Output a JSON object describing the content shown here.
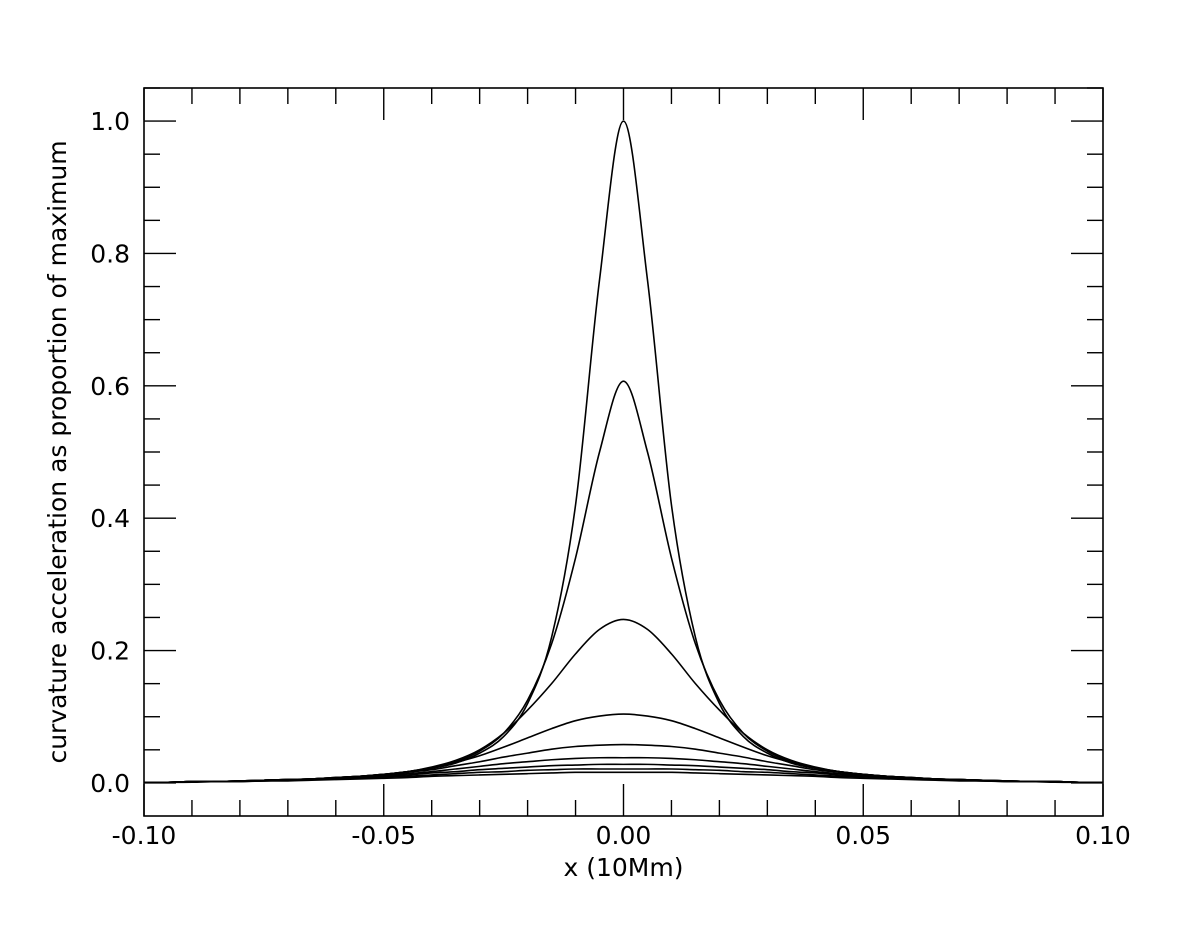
{
  "chart_data": {
    "type": "line",
    "title": "",
    "xlabel": "x (10Mm)",
    "ylabel": "curvature acceleration as proportion of maximum",
    "xlim": [
      -0.1,
      0.1
    ],
    "ylim": [
      -0.05,
      1.05
    ],
    "x_ticks": [
      "-0.10",
      "-0.05",
      "0.00",
      "0.05",
      "0.10"
    ],
    "y_ticks": [
      "0.0",
      "0.2",
      "0.4",
      "0.6",
      "0.8",
      "1.0"
    ],
    "grid": false,
    "legend": "none",
    "line_color": "#000000",
    "x": [
      -0.1,
      -0.095,
      -0.09,
      -0.085,
      -0.08,
      -0.075,
      -0.07,
      -0.065,
      -0.06,
      -0.055,
      -0.05,
      -0.045,
      -0.04,
      -0.035,
      -0.03,
      -0.025,
      -0.02,
      -0.015,
      -0.01,
      -0.005,
      0.0,
      0.005,
      0.01,
      0.015,
      0.02,
      0.025,
      0.03,
      0.035,
      0.04,
      0.045,
      0.05,
      0.055,
      0.06,
      0.065,
      0.07,
      0.075,
      0.08,
      0.085,
      0.09,
      0.095,
      0.1
    ],
    "series": [
      {
        "values": [
          0.001,
          0.001,
          0.002,
          0.002,
          0.003,
          0.004,
          0.005,
          0.006,
          0.008,
          0.01,
          0.013,
          0.017,
          0.022,
          0.03,
          0.045,
          0.07,
          0.12,
          0.22,
          0.42,
          0.76,
          1.0,
          0.76,
          0.42,
          0.22,
          0.12,
          0.07,
          0.045,
          0.03,
          0.022,
          0.017,
          0.013,
          0.01,
          0.008,
          0.006,
          0.005,
          0.004,
          0.003,
          0.002,
          0.002,
          0.001,
          0.001
        ]
      },
      {
        "values": [
          0.001,
          0.001,
          0.002,
          0.002,
          0.003,
          0.004,
          0.005,
          0.006,
          0.008,
          0.01,
          0.013,
          0.017,
          0.023,
          0.032,
          0.048,
          0.075,
          0.125,
          0.21,
          0.34,
          0.5,
          0.607,
          0.5,
          0.34,
          0.21,
          0.125,
          0.075,
          0.048,
          0.032,
          0.023,
          0.017,
          0.013,
          0.01,
          0.008,
          0.006,
          0.005,
          0.004,
          0.003,
          0.002,
          0.002,
          0.001,
          0.001
        ]
      },
      {
        "values": [
          0.001,
          0.001,
          0.002,
          0.002,
          0.003,
          0.004,
          0.005,
          0.006,
          0.008,
          0.01,
          0.013,
          0.017,
          0.024,
          0.034,
          0.05,
          0.075,
          0.11,
          0.15,
          0.195,
          0.232,
          0.247,
          0.232,
          0.195,
          0.15,
          0.11,
          0.075,
          0.05,
          0.034,
          0.024,
          0.017,
          0.013,
          0.01,
          0.008,
          0.006,
          0.005,
          0.004,
          0.003,
          0.002,
          0.002,
          0.001,
          0.001
        ]
      },
      {
        "values": [
          0.001,
          0.001,
          0.002,
          0.002,
          0.003,
          0.004,
          0.005,
          0.006,
          0.008,
          0.01,
          0.013,
          0.017,
          0.023,
          0.031,
          0.041,
          0.054,
          0.068,
          0.082,
          0.094,
          0.101,
          0.104,
          0.101,
          0.094,
          0.082,
          0.068,
          0.054,
          0.041,
          0.031,
          0.023,
          0.017,
          0.013,
          0.01,
          0.008,
          0.006,
          0.005,
          0.004,
          0.003,
          0.002,
          0.002,
          0.001,
          0.001
        ]
      },
      {
        "values": [
          0.001,
          0.001,
          0.002,
          0.002,
          0.003,
          0.004,
          0.005,
          0.006,
          0.008,
          0.01,
          0.012,
          0.016,
          0.02,
          0.026,
          0.032,
          0.039,
          0.045,
          0.051,
          0.055,
          0.057,
          0.058,
          0.057,
          0.055,
          0.051,
          0.045,
          0.039,
          0.032,
          0.026,
          0.02,
          0.016,
          0.012,
          0.01,
          0.008,
          0.006,
          0.005,
          0.004,
          0.003,
          0.002,
          0.002,
          0.001,
          0.001
        ]
      },
      {
        "values": [
          0.001,
          0.001,
          0.002,
          0.002,
          0.003,
          0.004,
          0.005,
          0.006,
          0.007,
          0.009,
          0.011,
          0.014,
          0.017,
          0.021,
          0.025,
          0.029,
          0.032,
          0.035,
          0.037,
          0.038,
          0.038,
          0.038,
          0.037,
          0.035,
          0.032,
          0.029,
          0.025,
          0.021,
          0.017,
          0.014,
          0.011,
          0.009,
          0.007,
          0.006,
          0.005,
          0.004,
          0.003,
          0.002,
          0.002,
          0.001,
          0.001
        ]
      },
      {
        "values": [
          0.001,
          0.001,
          0.002,
          0.002,
          0.003,
          0.003,
          0.004,
          0.005,
          0.007,
          0.008,
          0.01,
          0.012,
          0.015,
          0.017,
          0.02,
          0.022,
          0.024,
          0.026,
          0.027,
          0.028,
          0.028,
          0.028,
          0.027,
          0.026,
          0.024,
          0.022,
          0.02,
          0.017,
          0.015,
          0.012,
          0.01,
          0.008,
          0.007,
          0.005,
          0.004,
          0.003,
          0.003,
          0.002,
          0.002,
          0.001,
          0.001
        ]
      },
      {
        "values": [
          0.001,
          0.001,
          0.002,
          0.002,
          0.002,
          0.003,
          0.004,
          0.005,
          0.006,
          0.007,
          0.009,
          0.01,
          0.012,
          0.014,
          0.016,
          0.017,
          0.019,
          0.02,
          0.021,
          0.021,
          0.021,
          0.021,
          0.021,
          0.02,
          0.019,
          0.017,
          0.016,
          0.014,
          0.012,
          0.01,
          0.009,
          0.007,
          0.006,
          0.005,
          0.004,
          0.003,
          0.002,
          0.002,
          0.002,
          0.001,
          0.001
        ]
      },
      {
        "values": [
          0.001,
          0.001,
          0.001,
          0.002,
          0.002,
          0.003,
          0.003,
          0.004,
          0.005,
          0.006,
          0.007,
          0.008,
          0.01,
          0.011,
          0.012,
          0.013,
          0.014,
          0.015,
          0.016,
          0.016,
          0.016,
          0.016,
          0.016,
          0.015,
          0.014,
          0.013,
          0.012,
          0.011,
          0.01,
          0.008,
          0.007,
          0.006,
          0.005,
          0.004,
          0.003,
          0.003,
          0.002,
          0.002,
          0.001,
          0.001,
          0.001
        ]
      }
    ]
  }
}
